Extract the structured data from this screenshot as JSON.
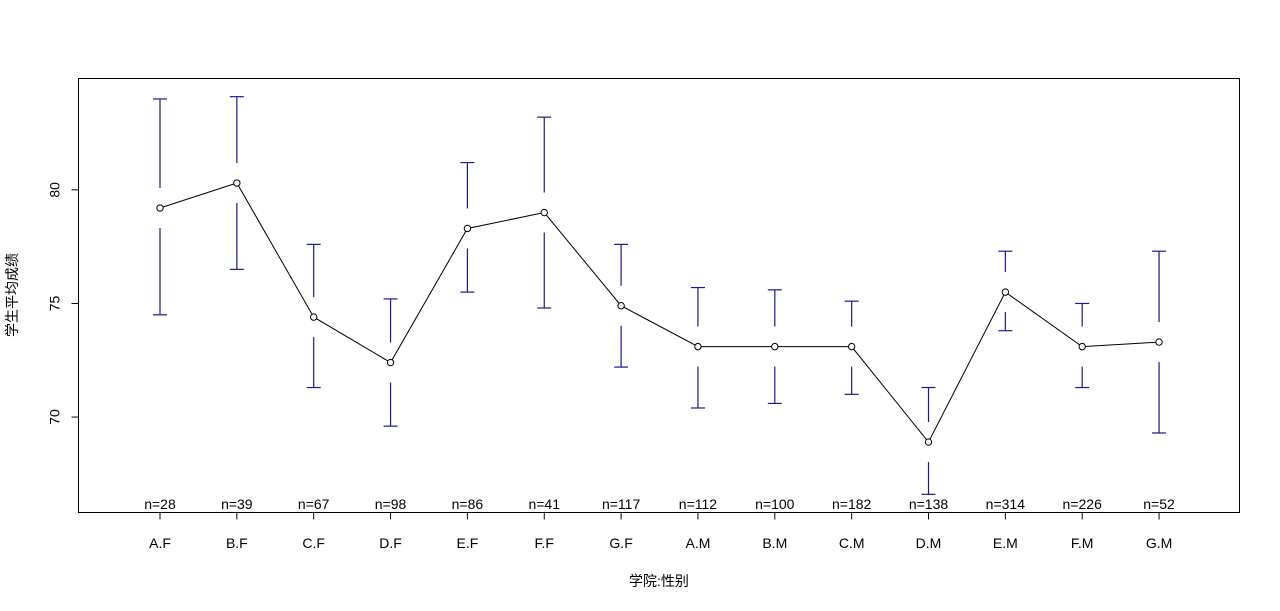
{
  "chart_data": {
    "type": "line",
    "title": "",
    "xlabel": "学院:性别",
    "ylabel": "学生平均成绩",
    "ylim": [
      65.8,
      84.9
    ],
    "yticks": [
      70,
      75,
      80
    ],
    "categories": [
      "A.F",
      "B.F",
      "C.F",
      "D.F",
      "E.F",
      "F.F",
      "G.F",
      "A.M",
      "B.M",
      "C.M",
      "D.M",
      "E.M",
      "F.M",
      "G.M"
    ],
    "means": [
      79.2,
      80.3,
      74.4,
      72.4,
      78.3,
      79.0,
      74.9,
      73.1,
      73.1,
      73.1,
      68.9,
      75.5,
      73.1,
      73.3
    ],
    "ci_upper": [
      84.0,
      84.1,
      77.6,
      75.2,
      81.2,
      83.2,
      77.6,
      75.7,
      75.6,
      75.1,
      71.3,
      77.3,
      75.0,
      77.3
    ],
    "ci_lower": [
      74.5,
      76.5,
      71.3,
      69.6,
      75.5,
      74.8,
      72.2,
      70.4,
      70.6,
      71.0,
      66.6,
      73.8,
      71.3,
      69.3
    ],
    "n_labels": [
      "n=28",
      "n=39",
      "n=67",
      "n=98",
      "n=86",
      "n=41",
      "n=117",
      "n=112",
      "n=100",
      "n=182",
      "n=138",
      "n=314",
      "n=226",
      "n=52"
    ],
    "colors": {
      "errorbar": "#1a1a8c",
      "line": "#000000",
      "axis": "#000000"
    }
  }
}
